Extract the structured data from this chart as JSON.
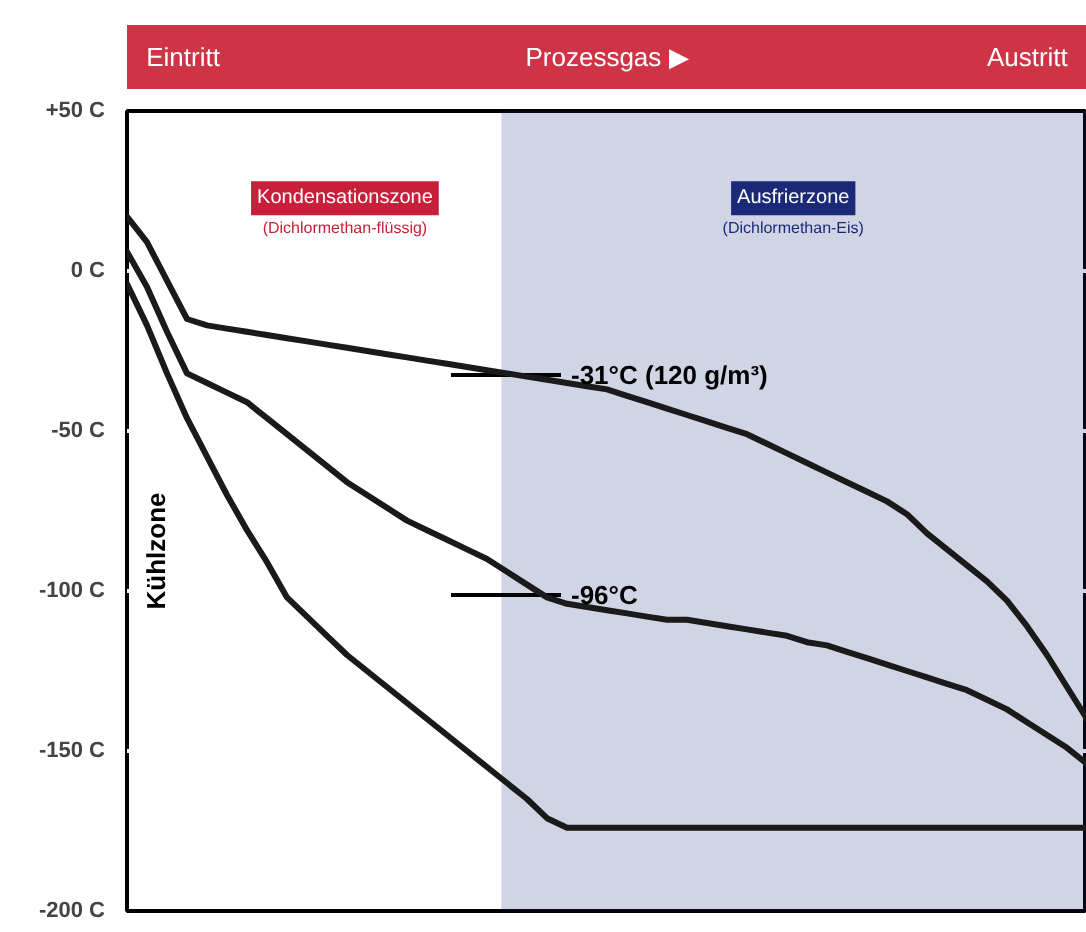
{
  "chart_data": {
    "type": "line",
    "categories": [
      null,
      null,
      null,
      null,
      null,
      null,
      null,
      null,
      null,
      null,
      null,
      null,
      null,
      null,
      null,
      null,
      null,
      null,
      null,
      null,
      null,
      null,
      null,
      null,
      null,
      null,
      null,
      null,
      null,
      null,
      null,
      null,
      null,
      null,
      null,
      null,
      null,
      null,
      null,
      null,
      null,
      null,
      null,
      null,
      null,
      null,
      null,
      null,
      null
    ],
    "series": [
      {
        "color": "#1a1a1a",
        "values": [
          17,
          9,
          -3,
          -15,
          -17,
          -18,
          -19,
          -20,
          -21,
          -22,
          -23,
          -24,
          -25,
          -26,
          -27,
          -28,
          -29,
          -30,
          -31,
          -32,
          -33,
          -34,
          -35,
          -36,
          -37,
          -39,
          -41,
          -43,
          -45,
          -47,
          -49,
          -51,
          -54,
          -57,
          -60,
          -63,
          -66,
          -69,
          -72,
          -76,
          -82,
          -87,
          -92,
          -97,
          -103,
          -111,
          -120,
          -130,
          -140
        ]
      },
      {
        "color": "#1a1a1a",
        "values": [
          6,
          -5,
          -19,
          -32,
          -35,
          -38,
          -41,
          -46,
          -51,
          -56,
          -61,
          -66,
          -70,
          -74,
          -78,
          -81,
          -84,
          -87,
          -90,
          -94,
          -98,
          -102,
          -104,
          -105,
          -106,
          -107,
          -108,
          -109,
          -109,
          -110,
          -111,
          -112,
          -113,
          -114,
          -116,
          -117,
          -119,
          -121,
          -123,
          -125,
          -127,
          -129,
          -131,
          -134,
          -137,
          -141,
          -145,
          -149,
          -154
        ]
      },
      {
        "color": "#1a1a1a",
        "values": [
          -4,
          -17,
          -32,
          -46,
          -58,
          -70,
          -81,
          -91,
          -102,
          -108,
          -114,
          -120,
          -125,
          -130,
          -135,
          -140,
          -145,
          -150,
          -155,
          -160,
          -165,
          -171,
          -174,
          -174,
          -174,
          -174,
          -174,
          -174,
          -174,
          -174,
          -174,
          -174,
          -174,
          -174,
          -174,
          -174,
          -174,
          -174,
          -174,
          -174,
          -174,
          -174,
          -174,
          -174,
          -174,
          -174,
          -174,
          -174,
          -174
        ]
      }
    ],
    "ylim": [
      -200,
      50
    ],
    "yticks": [
      {
        "value": 50,
        "label": "+50 C"
      },
      {
        "value": 0,
        "label": "0 C"
      },
      {
        "value": -50,
        "label": "-50 C"
      },
      {
        "value": -100,
        "label": "-100 C"
      },
      {
        "value": -150,
        "label": "-150 C"
      },
      {
        "value": -200,
        "label": "-200 C"
      }
    ],
    "tick_labels": "y",
    "grid": "y",
    "annotations": [
      "Eintritt",
      "Prozessgas ▶",
      "Austritt",
      "Kühlzone",
      "Kondensationszone",
      "(Dichlormethan-flüssig)",
      "Ausfrierzone",
      "(Dichlormethan-Eis)",
      "-31°C (120 g/m³)",
      "-96°C"
    ]
  }
}
